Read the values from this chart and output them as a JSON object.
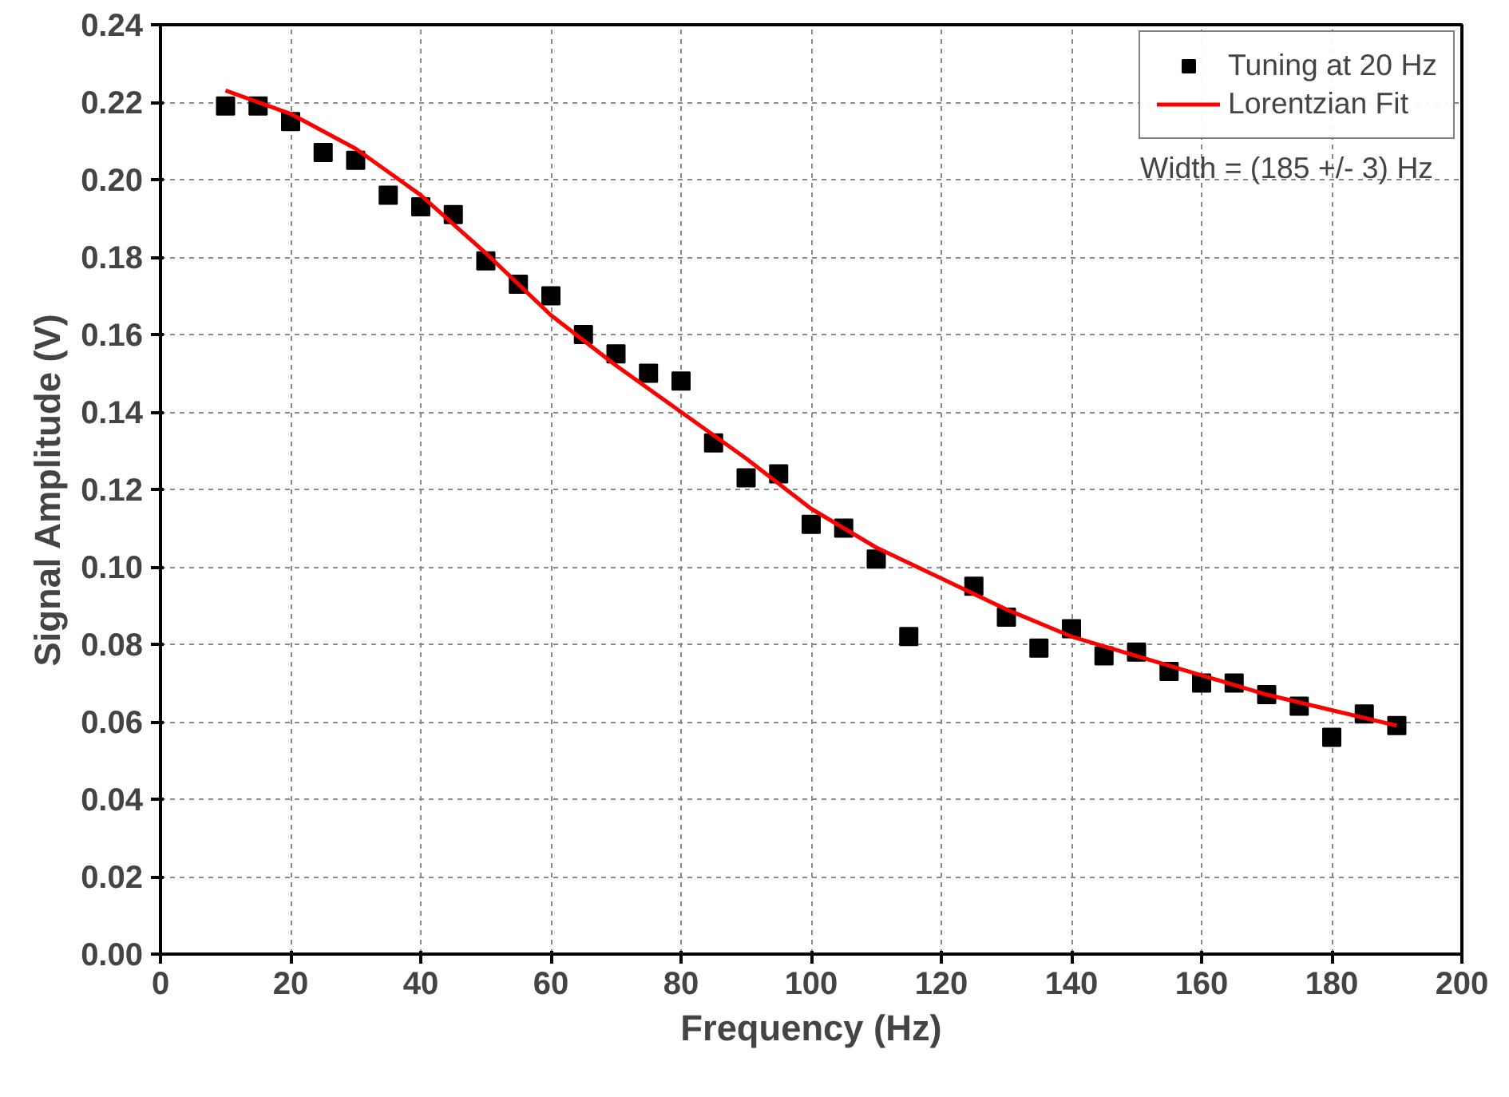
{
  "chart_data": {
    "type": "scatter",
    "xlabel": "Frequency (Hz)",
    "ylabel": "Signal Amplitude (V)",
    "xlim": [
      0,
      200
    ],
    "xticks": [
      0,
      20,
      40,
      60,
      80,
      100,
      120,
      140,
      160,
      180,
      200
    ],
    "ylim": [
      0,
      0.24
    ],
    "yticks": [
      {
        "value": 0,
        "label": "0.00"
      },
      {
        "value": 0.02,
        "label": "0.02"
      },
      {
        "value": 0.04,
        "label": "0.04"
      },
      {
        "value": 0.06,
        "label": "0.06"
      },
      {
        "value": 0.08,
        "label": "0.08"
      },
      {
        "value": 0.1,
        "label": "0.10"
      },
      {
        "value": 0.12,
        "label": "0.12"
      },
      {
        "value": 0.14,
        "label": "0.14"
      },
      {
        "value": 0.16,
        "label": "0.16"
      },
      {
        "value": 0.18,
        "label": "0.18"
      },
      {
        "value": 0.2,
        "label": "0.20"
      },
      {
        "value": 0.22,
        "label": "0.22"
      },
      {
        "value": 0.24,
        "label": "0.24"
      }
    ],
    "grid": true,
    "legend": "top right",
    "annotations": [
      "Width = (185 +/- 3) Hz"
    ],
    "series": [
      {
        "name": "Tuning at 20 Hz",
        "marker": "square",
        "color": "#000000",
        "x": [
          10,
          15,
          20,
          25,
          30,
          35,
          40,
          45,
          50,
          55,
          60,
          65,
          70,
          75,
          80,
          85,
          90,
          95,
          100,
          105,
          110,
          115,
          125,
          130,
          135,
          140,
          145,
          150,
          155,
          160,
          165,
          170,
          175,
          180,
          185,
          190
        ],
        "values": [
          0.219,
          0.219,
          0.215,
          0.207,
          0.205,
          0.196,
          0.193,
          0.191,
          0.179,
          0.173,
          0.17,
          0.16,
          0.155,
          0.15,
          0.148,
          0.132,
          0.123,
          0.124,
          0.111,
          0.11,
          0.102,
          0.082,
          0.095,
          0.087,
          0.079,
          0.084,
          0.077,
          0.078,
          0.073,
          0.07,
          0.07,
          0.067,
          0.064,
          0.056,
          0.062,
          0.059
        ]
      },
      {
        "name": "Lorentzian Fit",
        "type": "line",
        "line_style": "solid",
        "color": "#ff0000",
        "x": [
          10,
          20,
          30,
          40,
          50,
          60,
          70,
          80,
          90,
          100,
          110,
          120,
          130,
          140,
          150,
          160,
          170,
          180,
          190
        ],
        "values": [
          0.223,
          0.217,
          0.208,
          0.196,
          0.181,
          0.165,
          0.152,
          0.14,
          0.128,
          0.115,
          0.105,
          0.097,
          0.089,
          0.082,
          0.077,
          0.072,
          0.067,
          0.063,
          0.059
        ]
      }
    ]
  }
}
